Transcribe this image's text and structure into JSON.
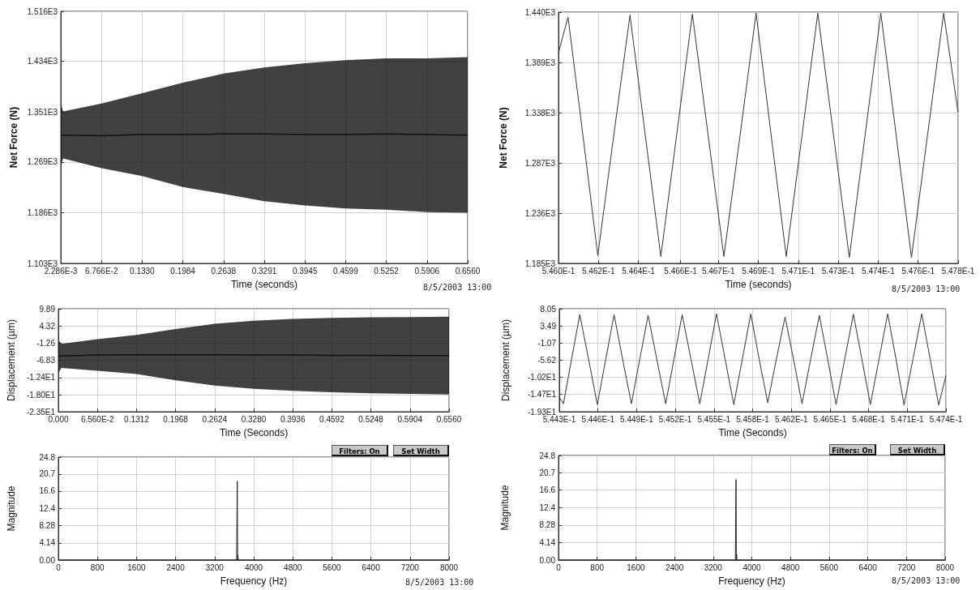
{
  "chart_data": [
    {
      "type": "line",
      "xlabel": "Time (seconds)",
      "ylabel": "Net Force (N)",
      "annotations": [
        "8/5/2003 13:00"
      ],
      "x": [
        0.002286,
        0.006,
        0.0677,
        0.133,
        0.1984,
        0.2638,
        0.3291,
        0.3945,
        0.4599,
        0.5252,
        0.5906,
        0.656
      ],
      "series": [
        {
          "color": "#111111",
          "values": [
            1313,
            1313,
            1312,
            1314,
            1314,
            1315,
            1315,
            1314,
            1314,
            1315,
            1314,
            1313
          ],
          "lower": [
            1262,
            1275,
            1259,
            1246,
            1228,
            1217,
            1205,
            1198,
            1193,
            1191,
            1187,
            1186
          ],
          "upper": [
            1365,
            1352,
            1365,
            1382,
            1399,
            1414,
            1424,
            1431,
            1436,
            1439,
            1439,
            1441
          ]
        }
      ],
      "xlim": [
        0.002286,
        0.656
      ],
      "xticks": [
        {
          "value": 0.002286,
          "label": "2.286E-3"
        },
        {
          "value": 0.06766,
          "label": "6.766E-2"
        },
        {
          "value": 0.133,
          "label": "0.1330"
        },
        0.1984,
        0.2638,
        0.3291,
        0.3945,
        0.4599,
        0.5252,
        0.5906,
        {
          "value": 0.656,
          "label": "0.6560"
        }
      ],
      "ylim": [
        1103,
        1516
      ],
      "yticks": [
        {
          "value": 1103,
          "label": "1.103E3"
        },
        {
          "value": 1186,
          "label": "1.186E3"
        },
        {
          "value": 1269,
          "label": "1.269E3"
        },
        {
          "value": 1351,
          "label": "1.351E3"
        },
        {
          "value": 1434,
          "label": "1.434E3"
        },
        {
          "value": 1516,
          "label": "1.516E3"
        }
      ],
      "grid": true,
      "marker": "none"
    },
    {
      "type": "line",
      "xlabel": "Time (seconds)",
      "ylabel": "Net Force (N)",
      "annotations": [
        "8/5/2003 13:00"
      ],
      "x": [
        0.546,
        0.546043,
        0.54611,
        0.546177,
        0.546249,
        0.546322,
        0.546391,
        0.546461,
        0.546532,
        0.546603,
        0.546674,
        0.546745,
        0.546818,
        0.54689,
        0.546958,
        0.547026,
        0.547097,
        0.547168,
        0.547239,
        0.54731,
        0.547381,
        0.547452,
        0.547521,
        0.54759,
        0.547662,
        0.547735,
        0.5478
      ],
      "series": [
        {
          "color": "#333333",
          "values": [
            1399,
            1435,
            1315,
            1193,
            1315,
            1437,
            1315,
            1192,
            1315,
            1438,
            1315,
            1192,
            1315,
            1439,
            1315,
            1192,
            1315,
            1439,
            1315,
            1191,
            1315,
            1439,
            1315,
            1191,
            1315,
            1439,
            1338
          ]
        }
      ],
      "xlim": [
        0.546,
        0.5478
      ],
      "xticks": [
        {
          "value": 0.546,
          "label": "5.460E-1"
        },
        {
          "value": 0.54618,
          "label": "5.462E-1"
        },
        {
          "value": 0.54636,
          "label": "5.464E-1"
        },
        {
          "value": 0.54655,
          "label": "5.466E-1"
        },
        {
          "value": 0.54672,
          "label": "5.467E-1"
        },
        {
          "value": 0.5469,
          "label": "5.469E-1"
        },
        {
          "value": 0.54708,
          "label": "5.471E-1"
        },
        {
          "value": 0.54726,
          "label": "5.473E-1"
        },
        {
          "value": 0.54744,
          "label": "5.474E-1"
        },
        {
          "value": 0.54762,
          "label": "5.476E-1"
        },
        {
          "value": 0.5478,
          "label": "5.478E-1"
        }
      ],
      "ylim": [
        1185,
        1440
      ],
      "yticks": [
        {
          "value": 1185,
          "label": "1.185E3"
        },
        {
          "value": 1236,
          "label": "1.236E3"
        },
        {
          "value": 1287,
          "label": "1.287E3"
        },
        {
          "value": 1338,
          "label": "1.338E3"
        },
        {
          "value": 1389,
          "label": "1.389E3"
        },
        {
          "value": 1440,
          "label": "1.440E3"
        }
      ],
      "grid": true,
      "marker": "none"
    },
    {
      "type": "line",
      "xlabel": "Time (Seconds)",
      "ylabel": "Displacement (µm)",
      "x": [
        0,
        0.005,
        0.0656,
        0.1312,
        0.1968,
        0.2624,
        0.328,
        0.3936,
        0.4592,
        0.5248,
        0.5904,
        0.656
      ],
      "series": [
        {
          "color": "#111111",
          "values": [
            -5.7,
            -5.4,
            -5.1,
            -5.0,
            -5.0,
            -5.0,
            -5.1,
            -5.1,
            -5.2,
            -5.2,
            -5.3,
            -5.3
          ],
          "lower": [
            -11.0,
            -9.3,
            -10.2,
            -11.3,
            -13.3,
            -15.0,
            -16.1,
            -16.7,
            -17.2,
            -17.5,
            -17.7,
            -17.9
          ],
          "upper": [
            -0.3,
            -1.5,
            0.0,
            1.4,
            3.3,
            5.0,
            6.0,
            6.6,
            6.9,
            7.1,
            7.2,
            7.3
          ]
        }
      ],
      "xlim": [
        0,
        0.656
      ],
      "xticks": [
        {
          "value": 0,
          "label": "0.000"
        },
        {
          "value": 0.0656,
          "label": "6.560E-2"
        },
        0.1312,
        0.1968,
        0.2624,
        {
          "value": 0.328,
          "label": "0.3280"
        },
        0.3936,
        0.4592,
        0.5248,
        0.5904,
        {
          "value": 0.656,
          "label": "0.6560"
        }
      ],
      "ylim": [
        -23.5,
        9.89
      ],
      "yticks": [
        {
          "value": -23.5,
          "label": "-2.35E1"
        },
        {
          "value": -18.0,
          "label": "-1.80E1"
        },
        {
          "value": -12.4,
          "label": "-1.24E1"
        },
        -6.83,
        -1.26,
        {
          "value": 4.32,
          "label": "4.32"
        },
        9.89
      ],
      "grid": true,
      "marker": "none"
    },
    {
      "type": "line",
      "xlabel": "Time (Seconds)",
      "ylabel": "Displacement (µm)",
      "x": [
        0.5443,
        0.544333,
        0.544398,
        0.544464,
        0.544535,
        0.544605,
        0.544672,
        0.544739,
        0.544808,
        0.544878,
        0.544945,
        0.545012,
        0.545082,
        0.545153,
        0.545219,
        0.545285,
        0.545356,
        0.545426,
        0.545493,
        0.54556,
        0.54563,
        0.545699,
        0.545767,
        0.545835,
        0.545903,
        0.545971,
        0.54604,
        0.54611,
        0.546178,
        0.546246,
        0.546315,
        0.546385,
        0.546452,
        0.546519,
        0.546588,
        0.546658,
        0.546726,
        0.546794,
        0.546863,
        0.546933,
        0.547,
        0.547064,
        0.547135,
        0.547206,
        0.547274,
        0.547342,
        0.5474
      ],
      "series": [
        {
          "color": "#333333",
          "values": [
            -15.4,
            -17.2,
            -5.4,
            6.5,
            -5.4,
            -17.4,
            -5.4,
            6.5,
            -5.4,
            -17.2,
            -5.4,
            6.3,
            -5.4,
            -17.2,
            -5.4,
            6.5,
            -5.4,
            -17.2,
            -5.4,
            6.7,
            -5.4,
            -17.4,
            -5.4,
            6.7,
            -5.4,
            -16.9,
            -5.4,
            5.9,
            -5.4,
            -17.2,
            -5.4,
            6.3,
            -5.4,
            -17.4,
            -5.4,
            6.6,
            -5.4,
            -17.4,
            -5.4,
            6.7,
            -5.4,
            -17.5,
            -5.4,
            6.7,
            -5.4,
            -17.5,
            -9.7
          ]
        }
      ],
      "xlim": [
        0.5443,
        0.5474
      ],
      "xticks": [
        {
          "value": 0.5443,
          "label": "5.443E-1"
        },
        {
          "value": 0.54461,
          "label": "5.446E-1"
        },
        {
          "value": 0.54492,
          "label": "5.449E-1"
        },
        {
          "value": 0.54523,
          "label": "5.452E-1"
        },
        {
          "value": 0.54554,
          "label": "5.455E-1"
        },
        {
          "value": 0.54585,
          "label": "5.458E-1"
        },
        {
          "value": 0.54616,
          "label": "5.462E-1"
        },
        {
          "value": 0.54647,
          "label": "5.465E-1"
        },
        {
          "value": 0.54678,
          "label": "5.468E-1"
        },
        {
          "value": 0.54709,
          "label": "5.471E-1"
        },
        {
          "value": 0.5474,
          "label": "5.474E-1"
        }
      ],
      "ylim": [
        -19.3,
        8.05
      ],
      "yticks": [
        {
          "value": -19.3,
          "label": "-1.93E1"
        },
        {
          "value": -14.7,
          "label": "-1.47E1"
        },
        {
          "value": -10.2,
          "label": "-1.02E1"
        },
        -5.62,
        -1.07,
        {
          "value": 3.49,
          "label": "3.49"
        },
        8.05
      ],
      "grid": true,
      "marker": "none"
    },
    {
      "type": "line",
      "xlabel": "Frequency (Hz)",
      "ylabel": "Magnitude",
      "annotations": [
        "Filters: On",
        "Set Width",
        "8/5/2003 13:00"
      ],
      "x": [
        0,
        3650,
        3663,
        3670,
        3676,
        3682,
        8000
      ],
      "series": [
        {
          "color": "#222222",
          "values": [
            0,
            0,
            19.0,
            0,
            1.3,
            0,
            0
          ]
        }
      ],
      "xlim": [
        0,
        8000
      ],
      "xticks": [
        0,
        800,
        1600,
        2400,
        3200,
        4000,
        4800,
        5600,
        6400,
        7200,
        8000
      ],
      "ylim": [
        0,
        24.8
      ],
      "yticks": [
        {
          "value": 0,
          "label": "0.00"
        },
        4.14,
        8.28,
        12.4,
        16.6,
        20.7,
        24.8
      ],
      "grid": true,
      "marker": "none"
    },
    {
      "type": "line",
      "xlabel": "Frequency (Hz)",
      "ylabel": "Magnitude",
      "annotations": [
        "Filters: On",
        "Set Width",
        "8/5/2003 13:00"
      ],
      "x": [
        0,
        3660,
        3673,
        3680,
        3686,
        3692,
        8000
      ],
      "series": [
        {
          "color": "#222222",
          "values": [
            0,
            0,
            19.1,
            0,
            1.3,
            0,
            0
          ]
        }
      ],
      "xlim": [
        0,
        8000
      ],
      "xticks": [
        0,
        800,
        1600,
        2400,
        3200,
        4000,
        4800,
        5600,
        6400,
        7200,
        8000
      ],
      "ylim": [
        0,
        24.8
      ],
      "yticks": [
        {
          "value": 0,
          "label": "0.00"
        },
        4.14,
        8.28,
        12.4,
        16.6,
        20.7,
        24.8
      ],
      "grid": true,
      "marker": "none"
    }
  ]
}
